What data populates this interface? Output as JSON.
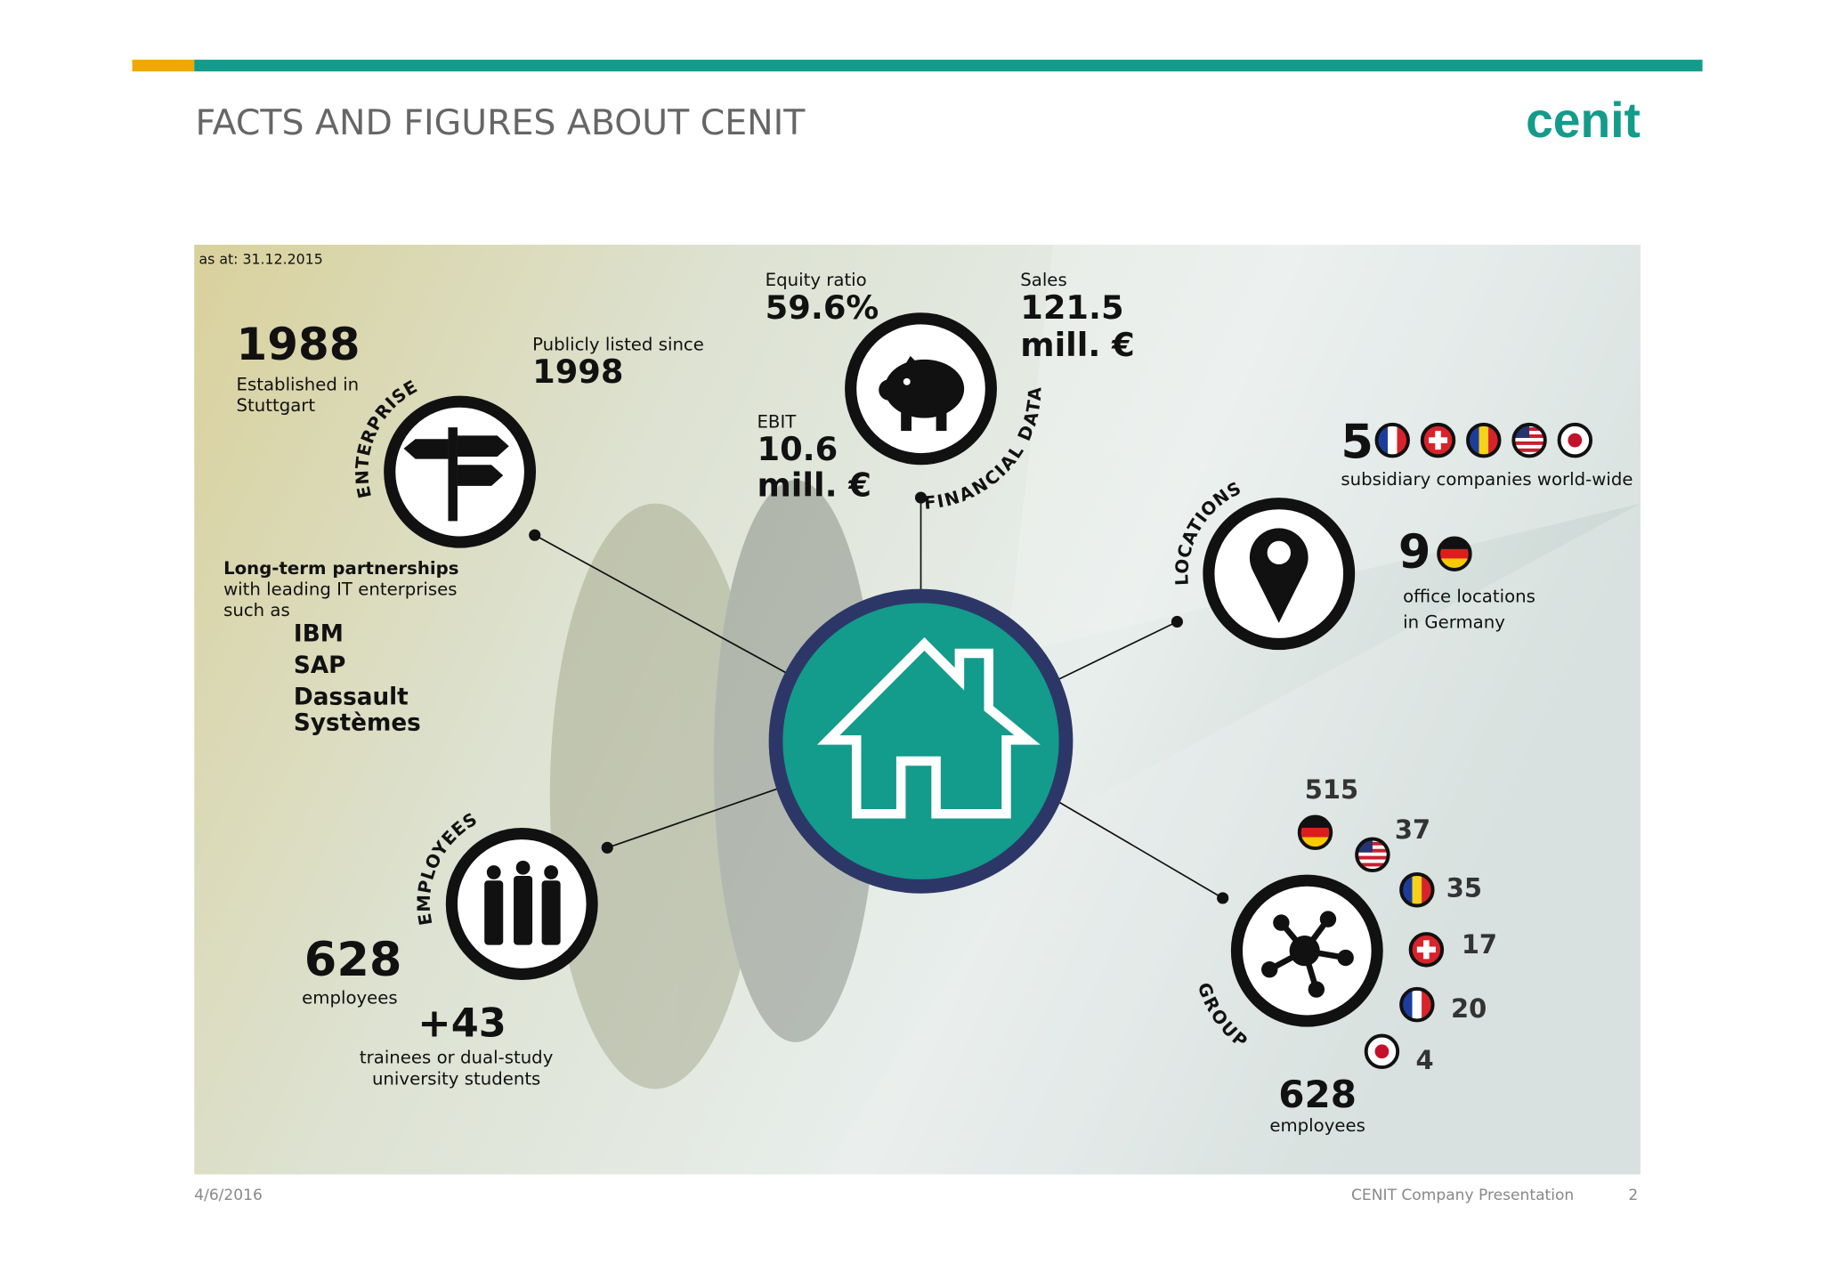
{
  "header": {
    "title": "FACTS AND FIGURES ABOUT CENIT",
    "logo": "cenit"
  },
  "as_at": "as at: 31.12.2015",
  "enterprise": {
    "label": "ENTERPRISE",
    "founded_year": "1988",
    "founded_text": [
      "Established in",
      "Stuttgart"
    ],
    "listed_label": "Publicly listed since",
    "listed_year": "1998",
    "partnerships": {
      "heading": "Long-term partnerships",
      "text": [
        "with leading IT enterprises",
        "such as"
      ],
      "partners": [
        "IBM",
        "SAP",
        "Dassault",
        "Systèmes"
      ]
    }
  },
  "financial": {
    "label": "FINANCIAL DATA",
    "equity_label": "Equity ratio",
    "equity_value": "59.6%",
    "sales_label": "Sales",
    "sales_value": [
      "121.5",
      "mill. €"
    ],
    "ebit_label": "EBIT",
    "ebit_value": [
      "10.6",
      "mill. €"
    ]
  },
  "locations": {
    "label": "LOCATIONS",
    "subsidiaries_count": "5",
    "subsidiaries_text": "subsidiary companies world-wide",
    "offices_count": "9",
    "offices_text": [
      "office locations",
      "in Germany"
    ]
  },
  "employees": {
    "label": "EMPLOYEES",
    "count": "628",
    "count_text": "employees",
    "extra": "+43",
    "extra_text": [
      "trainees or dual-study",
      "university students"
    ]
  },
  "group": {
    "label": "GROUP",
    "breakdown": [
      "515",
      "37",
      "35",
      "17",
      "20",
      "4"
    ],
    "total": "628",
    "total_text": "employees"
  },
  "footer": {
    "date": "4/6/2016",
    "presentation": "CENIT Company Presentation",
    "page": "2"
  }
}
